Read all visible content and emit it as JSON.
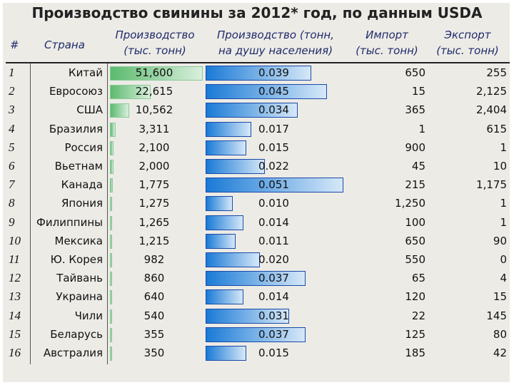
{
  "title": "Производство свинины за 2012* год, по данным USDA",
  "columns": {
    "num": "#",
    "country": "Страна",
    "production": [
      "Производство",
      "(тыс. тонн)"
    ],
    "per_capita": [
      "Производство (тонн,",
      "на душу населения)"
    ],
    "import": [
      "Импорт",
      "(тыс. тонн)"
    ],
    "export": [
      "Экспорт",
      "(тыс. тонн)"
    ]
  },
  "chart_data": {
    "type": "table",
    "title": "Производство свинины за 2012* год, по данным USDA",
    "rows": [
      {
        "n": "1",
        "country": "Китай",
        "production": "51,600",
        "production_value": 51600,
        "per_capita": "0.039",
        "per_capita_value": 0.039,
        "import": "650",
        "export": "255"
      },
      {
        "n": "2",
        "country": "Евросоюз",
        "production": "22,615",
        "production_value": 22615,
        "per_capita": "0.045",
        "per_capita_value": 0.045,
        "import": "15",
        "export": "2,125"
      },
      {
        "n": "3",
        "country": "США",
        "production": "10,562",
        "production_value": 10562,
        "per_capita": "0.034",
        "per_capita_value": 0.034,
        "import": "365",
        "export": "2,404"
      },
      {
        "n": "4",
        "country": "Бразилия",
        "production": "3,311",
        "production_value": 3311,
        "per_capita": "0.017",
        "per_capita_value": 0.017,
        "import": "1",
        "export": "615"
      },
      {
        "n": "5",
        "country": "Россия",
        "production": "2,100",
        "production_value": 2100,
        "per_capita": "0.015",
        "per_capita_value": 0.015,
        "import": "900",
        "export": "1"
      },
      {
        "n": "6",
        "country": "Вьетнам",
        "production": "2,000",
        "production_value": 2000,
        "per_capita": "0.022",
        "per_capita_value": 0.022,
        "import": "45",
        "export": "10"
      },
      {
        "n": "7",
        "country": "Канада",
        "production": "1,775",
        "production_value": 1775,
        "per_capita": "0.051",
        "per_capita_value": 0.051,
        "import": "215",
        "export": "1,175"
      },
      {
        "n": "8",
        "country": "Япония",
        "production": "1,275",
        "production_value": 1275,
        "per_capita": "0.010",
        "per_capita_value": 0.01,
        "import": "1,250",
        "export": "1"
      },
      {
        "n": "9",
        "country": "Филиппины",
        "production": "1,265",
        "production_value": 1265,
        "per_capita": "0.014",
        "per_capita_value": 0.014,
        "import": "100",
        "export": "1"
      },
      {
        "n": "10",
        "country": "Мексика",
        "production": "1,215",
        "production_value": 1215,
        "per_capita": "0.011",
        "per_capita_value": 0.011,
        "import": "650",
        "export": "90"
      },
      {
        "n": "11",
        "country": "Ю. Корея",
        "production": "982",
        "production_value": 982,
        "per_capita": "0.020",
        "per_capita_value": 0.02,
        "import": "550",
        "export": "0"
      },
      {
        "n": "12",
        "country": "Тайвань",
        "production": "860",
        "production_value": 860,
        "per_capita": "0.037",
        "per_capita_value": 0.037,
        "import": "65",
        "export": "4"
      },
      {
        "n": "13",
        "country": "Украина",
        "production": "640",
        "production_value": 640,
        "per_capita": "0.014",
        "per_capita_value": 0.014,
        "import": "120",
        "export": "15"
      },
      {
        "n": "14",
        "country": "Чили",
        "production": "540",
        "production_value": 540,
        "per_capita": "0.031",
        "per_capita_value": 0.031,
        "import": "22",
        "export": "145"
      },
      {
        "n": "15",
        "country": "Беларусь",
        "production": "355",
        "production_value": 355,
        "per_capita": "0.037",
        "per_capita_value": 0.037,
        "import": "125",
        "export": "80"
      },
      {
        "n": "16",
        "country": "Австралия",
        "production": "350",
        "production_value": 350,
        "per_capita": "0.015",
        "per_capita_value": 0.015,
        "import": "185",
        "export": "42"
      }
    ],
    "production_max": 51600,
    "per_capita_max": 0.051,
    "colors": {
      "production_bar": "#5cba6e",
      "per_capita_bar": "#1a7ad6",
      "header_text": "#1f2a6a"
    }
  }
}
